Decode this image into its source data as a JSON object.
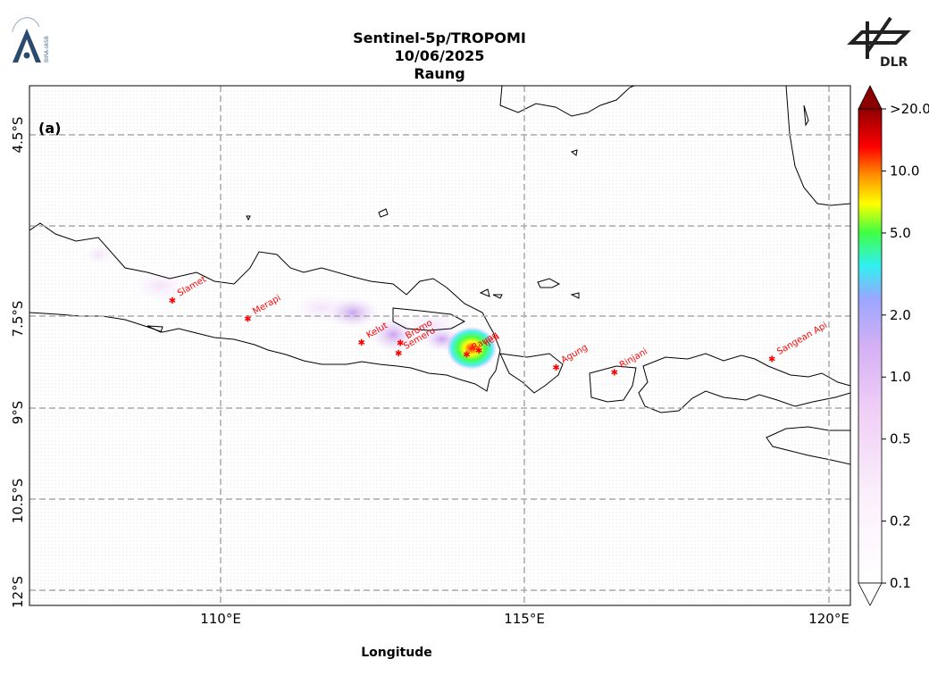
{
  "header": {
    "title_line1": "Sentinel-5p/TROPOMI",
    "title_line2": "10/06/2025",
    "title_line3": "Raung",
    "logo_left_text": "BIRA-IASB",
    "logo_right_text": "DLR"
  },
  "map": {
    "panel_label": "(a)",
    "xlabel": "Longitude",
    "lon_ticks": [
      "110°E",
      "115°E",
      "120°E"
    ],
    "lat_ticks": [
      "4.5°S",
      "7.5°S",
      "9°S",
      "10.5°S",
      "12°S"
    ],
    "extent": {
      "lon_min": 106.85,
      "lon_max": 120.35,
      "lat_top": -3.7,
      "lat_bottom": -12.25
    },
    "volcanoes": [
      {
        "name": "Slamet",
        "lon": 109.2,
        "lat": -7.24
      },
      {
        "name": "Merapi",
        "lon": 110.44,
        "lat": -7.54
      },
      {
        "name": "Kelut",
        "lon": 112.31,
        "lat": -7.93
      },
      {
        "name": "Semeru",
        "lon": 112.92,
        "lat": -8.11
      },
      {
        "name": "Bromo",
        "lon": 112.95,
        "lat": -7.94
      },
      {
        "name": "Raung",
        "lon": 114.04,
        "lat": -8.13
      },
      {
        "name": "Ijen",
        "lon": 114.24,
        "lat": -8.06
      },
      {
        "name": "Agung",
        "lon": 115.51,
        "lat": -8.34
      },
      {
        "name": "Rinjani",
        "lon": 116.47,
        "lat": -8.42
      },
      {
        "name": "Sangean Api",
        "lon": 119.06,
        "lat": -8.2
      }
    ],
    "volcano_color": "#ff0000"
  },
  "colorbar": {
    "tick_labels": [
      ">20.0",
      "10.0",
      "5.0",
      "2.0",
      "1.0",
      "0.5",
      "0.2",
      "0.1"
    ],
    "tick_values": [
      20,
      10,
      5,
      2,
      1,
      0.5,
      0.2,
      0.1
    ],
    "min": 0.1,
    "max": 20,
    "scale": "log",
    "colors": [
      "#ffffff",
      "#f8e8fa",
      "#e6b8f0",
      "#b8a8ff",
      "#40f0f0",
      "#40ff40",
      "#ffff00",
      "#ff9000",
      "#ff0000",
      "#800000"
    ]
  }
}
